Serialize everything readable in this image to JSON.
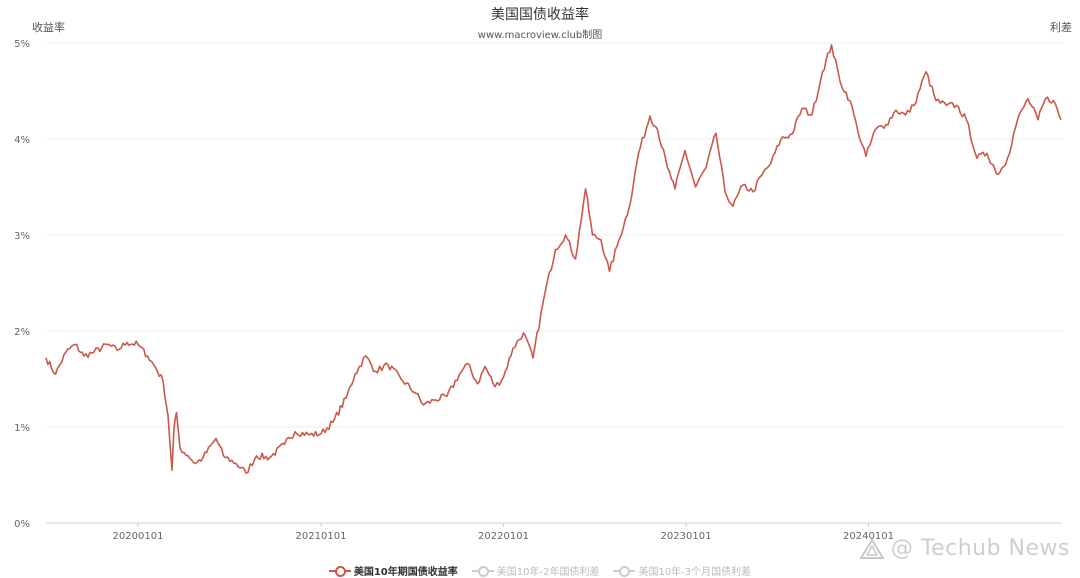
{
  "chart_data": {
    "type": "line",
    "title": "美国国债收益率",
    "subtitle": "www.macroview.club制图",
    "ylabel_left": "收益率",
    "ylabel_right": "利差",
    "y_ticks": [
      "0%",
      "1%",
      "2%",
      "3%",
      "4%",
      "5%"
    ],
    "ylim": [
      0,
      5
    ],
    "x_ticks": [
      "20200101",
      "20210101",
      "20220101",
      "20230101",
      "20240101"
    ],
    "grid": "horizontal",
    "legend_position": "bottom",
    "series": [
      {
        "name": "美国10年期国债收益率",
        "color": "#c9594a",
        "active": true,
        "points": [
          [
            "2019-07-01",
            1.72
          ],
          [
            "2019-07-20",
            1.55
          ],
          [
            "2019-08-10",
            1.78
          ],
          [
            "2019-08-28",
            1.86
          ],
          [
            "2019-09-15",
            1.74
          ],
          [
            "2019-10-05",
            1.78
          ],
          [
            "2019-11-01",
            1.86
          ],
          [
            "2019-11-20",
            1.8
          ],
          [
            "2019-12-10",
            1.88
          ],
          [
            "2020-01-01",
            1.86
          ],
          [
            "2020-01-20",
            1.74
          ],
          [
            "2020-02-05",
            1.62
          ],
          [
            "2020-02-20",
            1.48
          ],
          [
            "2020-03-01",
            1.12
          ],
          [
            "2020-03-09",
            0.55
          ],
          [
            "2020-03-13",
            0.98
          ],
          [
            "2020-03-18",
            1.15
          ],
          [
            "2020-03-25",
            0.78
          ],
          [
            "2020-04-10",
            0.7
          ],
          [
            "2020-04-25",
            0.62
          ],
          [
            "2020-05-10",
            0.68
          ],
          [
            "2020-06-05",
            0.88
          ],
          [
            "2020-06-20",
            0.7
          ],
          [
            "2020-07-15",
            0.62
          ],
          [
            "2020-08-04",
            0.52
          ],
          [
            "2020-08-25",
            0.7
          ],
          [
            "2020-09-20",
            0.68
          ],
          [
            "2020-10-20",
            0.82
          ],
          [
            "2020-11-10",
            0.95
          ],
          [
            "2020-12-10",
            0.92
          ],
          [
            "2021-01-01",
            0.93
          ],
          [
            "2021-01-25",
            1.05
          ],
          [
            "2021-02-20",
            1.3
          ],
          [
            "2021-03-10",
            1.55
          ],
          [
            "2021-03-31",
            1.74
          ],
          [
            "2021-04-20",
            1.58
          ],
          [
            "2021-05-15",
            1.65
          ],
          [
            "2021-06-10",
            1.5
          ],
          [
            "2021-07-10",
            1.35
          ],
          [
            "2021-07-25",
            1.23
          ],
          [
            "2021-08-15",
            1.28
          ],
          [
            "2021-09-10",
            1.32
          ],
          [
            "2021-10-05",
            1.55
          ],
          [
            "2021-10-21",
            1.66
          ],
          [
            "2021-11-10",
            1.45
          ],
          [
            "2021-11-25",
            1.63
          ],
          [
            "2021-12-15",
            1.42
          ],
          [
            "2022-01-01",
            1.52
          ],
          [
            "2022-01-20",
            1.82
          ],
          [
            "2022-02-10",
            1.98
          ],
          [
            "2022-03-01",
            1.72
          ],
          [
            "2022-03-25",
            2.4
          ],
          [
            "2022-04-15",
            2.85
          ],
          [
            "2022-05-05",
            3.0
          ],
          [
            "2022-05-25",
            2.75
          ],
          [
            "2022-06-14",
            3.48
          ],
          [
            "2022-06-28",
            3.0
          ],
          [
            "2022-07-15",
            2.95
          ],
          [
            "2022-08-01",
            2.62
          ],
          [
            "2022-08-20",
            2.95
          ],
          [
            "2022-09-10",
            3.3
          ],
          [
            "2022-09-28",
            3.85
          ],
          [
            "2022-10-21",
            4.24
          ],
          [
            "2022-11-05",
            4.1
          ],
          [
            "2022-11-25",
            3.7
          ],
          [
            "2022-12-10",
            3.48
          ],
          [
            "2022-12-30",
            3.88
          ],
          [
            "2023-01-20",
            3.5
          ],
          [
            "2023-02-10",
            3.7
          ],
          [
            "2023-03-02",
            4.06
          ],
          [
            "2023-03-20",
            3.45
          ],
          [
            "2023-04-05",
            3.3
          ],
          [
            "2023-04-25",
            3.52
          ],
          [
            "2023-05-15",
            3.45
          ],
          [
            "2023-06-01",
            3.62
          ],
          [
            "2023-06-20",
            3.75
          ],
          [
            "2023-07-10",
            4.0
          ],
          [
            "2023-08-01",
            4.05
          ],
          [
            "2023-08-21",
            4.32
          ],
          [
            "2023-09-10",
            4.25
          ],
          [
            "2023-10-01",
            4.7
          ],
          [
            "2023-10-19",
            4.98
          ],
          [
            "2023-11-05",
            4.6
          ],
          [
            "2023-11-25",
            4.4
          ],
          [
            "2023-12-10",
            4.1
          ],
          [
            "2023-12-27",
            3.82
          ],
          [
            "2024-01-15",
            4.1
          ],
          [
            "2024-02-05",
            4.15
          ],
          [
            "2024-02-25",
            4.3
          ],
          [
            "2024-03-15",
            4.25
          ],
          [
            "2024-04-01",
            4.35
          ],
          [
            "2024-04-25",
            4.7
          ],
          [
            "2024-05-15",
            4.4
          ],
          [
            "2024-06-05",
            4.35
          ],
          [
            "2024-06-25",
            4.35
          ],
          [
            "2024-07-15",
            4.2
          ],
          [
            "2024-08-05",
            3.8
          ],
          [
            "2024-08-25",
            3.85
          ],
          [
            "2024-09-16",
            3.63
          ],
          [
            "2024-10-05",
            3.8
          ],
          [
            "2024-10-25",
            4.2
          ],
          [
            "2024-11-15",
            4.42
          ],
          [
            "2024-12-05",
            4.2
          ],
          [
            "2024-12-20",
            4.42
          ],
          [
            "2025-01-05",
            4.4
          ],
          [
            "2025-01-20",
            4.2
          ]
        ]
      },
      {
        "name": "美国10年-2年国债利差",
        "color": "#cccccc",
        "active": false,
        "points": []
      },
      {
        "name": "美国10年-3个月国债利差",
        "color": "#cccccc",
        "active": false,
        "points": []
      }
    ]
  },
  "watermark": {
    "text": "@ Techub News",
    "icon": "techub-logo-icon"
  }
}
